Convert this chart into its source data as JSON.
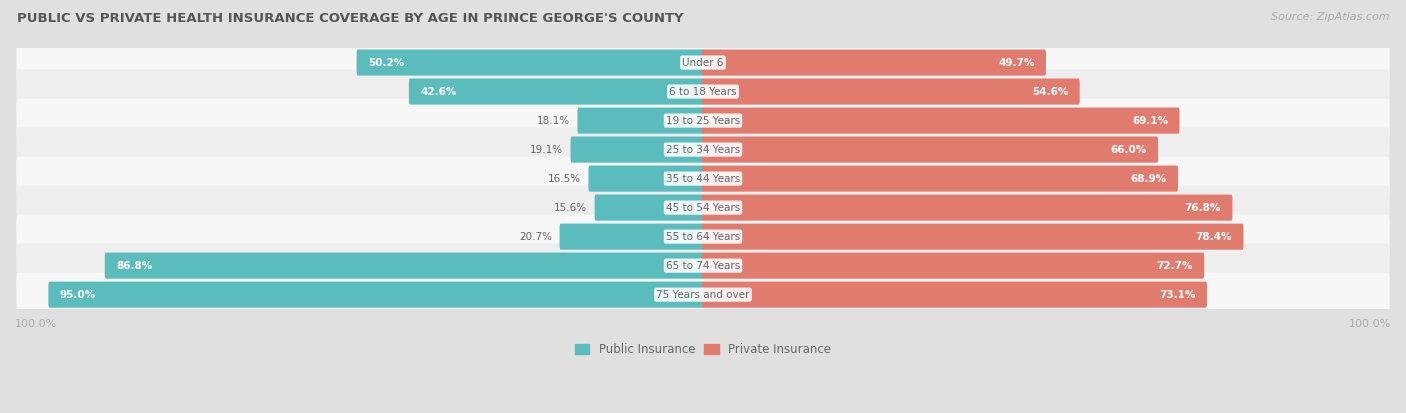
{
  "title": "PUBLIC VS PRIVATE HEALTH INSURANCE COVERAGE BY AGE IN PRINCE GEORGE'S COUNTY",
  "source": "Source: ZipAtlas.com",
  "categories": [
    "Under 6",
    "6 to 18 Years",
    "19 to 25 Years",
    "25 to 34 Years",
    "35 to 44 Years",
    "45 to 54 Years",
    "55 to 64 Years",
    "65 to 74 Years",
    "75 Years and over"
  ],
  "public_values": [
    50.2,
    42.6,
    18.1,
    19.1,
    16.5,
    15.6,
    20.7,
    86.8,
    95.0
  ],
  "private_values": [
    49.7,
    54.6,
    69.1,
    66.0,
    68.9,
    76.8,
    78.4,
    72.7,
    73.1
  ],
  "public_color": "#5bbcbe",
  "private_color": "#e07b6e",
  "row_bg_color_light": "#f7f7f7",
  "row_bg_color_dark": "#eeeeee",
  "fig_bg_color": "#e0e0e0",
  "title_color": "#555555",
  "label_color": "#666666",
  "axis_label_color": "#aaaaaa",
  "white_text": "#ffffff",
  "max_value": 100.0,
  "bar_height": 0.6,
  "figsize": [
    14.06,
    4.13
  ],
  "dpi": 100,
  "pub_label_threshold": 25,
  "priv_label_threshold": 25
}
